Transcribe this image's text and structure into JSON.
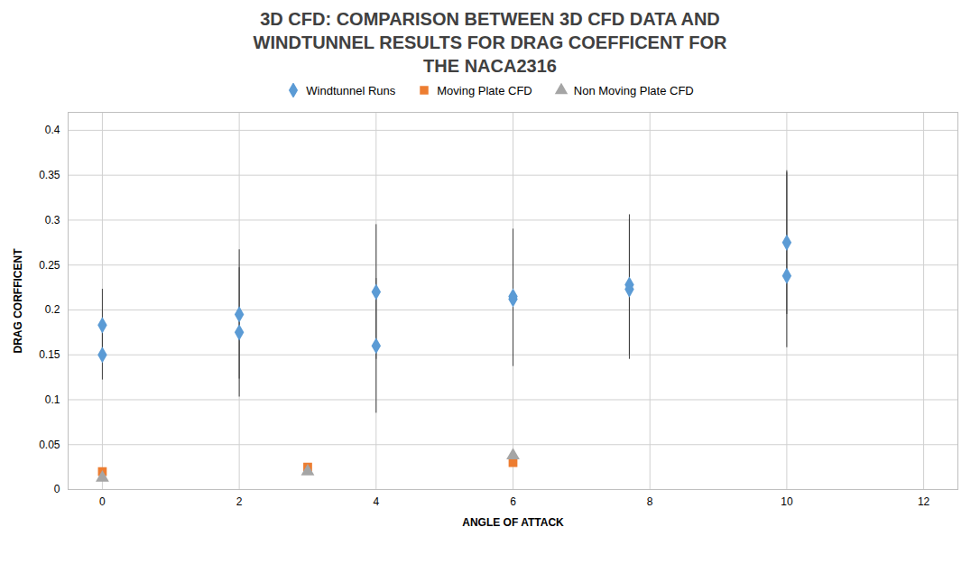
{
  "chart_data": {
    "type": "scatter",
    "title": "3D CFD: COMPARISON BETWEEN 3D CFD DATA AND\nWINDTUNNEL RESULTS FOR DRAG COEFFICENT FOR\nTHE NACA2316",
    "x_label": "ANGLE OF ATTACK",
    "y_label": "DRAG CORFFICENT",
    "xlim": [
      -0.5,
      12.5
    ],
    "ylim": [
      0,
      0.42
    ],
    "xticks": [
      0,
      2,
      4,
      6,
      8,
      10,
      12
    ],
    "yticks": [
      0,
      0.05,
      0.1,
      0.15,
      0.2,
      0.25,
      0.3,
      0.35,
      0.4
    ],
    "grid": true,
    "legend": "top",
    "series": [
      {
        "name": "Windtunnel Runs",
        "color": "#5B9BD5",
        "marker": "diamond",
        "x": [
          0,
          0,
          2,
          2,
          4,
          4,
          6,
          6,
          7.7,
          7.7,
          10,
          10
        ],
        "values": [
          0.15,
          0.183,
          0.175,
          0.195,
          0.16,
          0.22,
          0.215,
          0.212,
          0.228,
          0.223,
          0.238,
          0.275
        ],
        "error_low": [
          0.028,
          0.04,
          0.072,
          0.072,
          0.075,
          0.075,
          0.075,
          0.075,
          0.078,
          0.078,
          0.08,
          0.08
        ],
        "error_high": [
          0.028,
          0.04,
          0.072,
          0.072,
          0.075,
          0.075,
          0.075,
          0.075,
          0.078,
          0.078,
          0.115,
          0.08
        ]
      },
      {
        "name": "Moving Plate CFD",
        "color": "#ED7D31",
        "marker": "square",
        "x": [
          0,
          3,
          6
        ],
        "values": [
          0.02,
          0.025,
          0.03
        ]
      },
      {
        "name": "Non Moving Plate CFD",
        "color": "#A5A5A5",
        "marker": "triangle",
        "x": [
          0,
          3,
          6
        ],
        "values": [
          0.013,
          0.02,
          0.038
        ]
      }
    ]
  }
}
